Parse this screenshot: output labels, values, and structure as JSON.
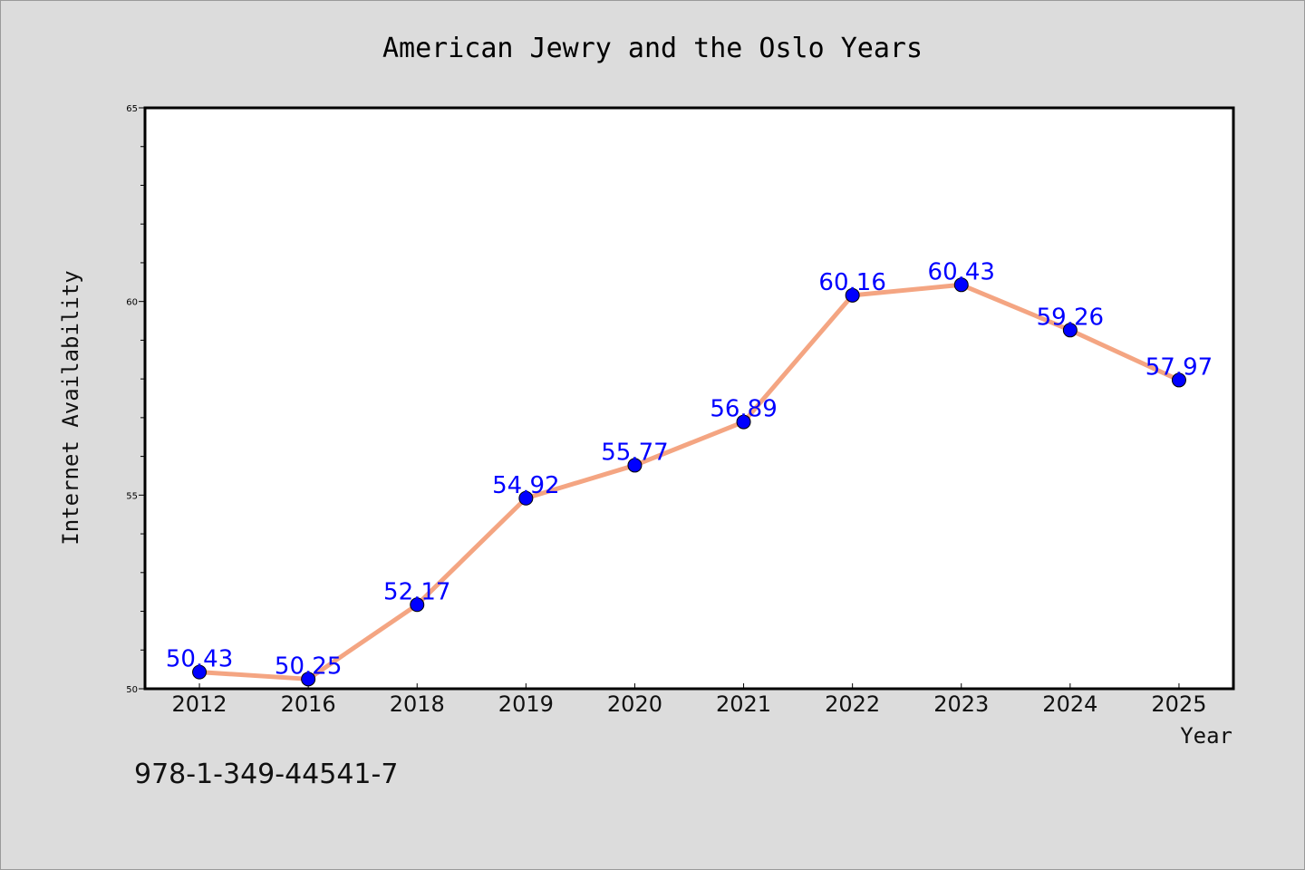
{
  "chart_data": {
    "type": "line",
    "title": "American Jewry and the Oslo Years",
    "xlabel": "Year",
    "ylabel": "Internet Availability",
    "categories": [
      "2012",
      "2016",
      "2018",
      "2019",
      "2020",
      "2021",
      "2022",
      "2023",
      "2024",
      "2025"
    ],
    "series": [
      {
        "values": [
          50.43,
          50.25,
          52.17,
          54.92,
          55.77,
          56.89,
          60.16,
          60.43,
          59.26,
          57.97
        ],
        "line_color": "#f4a582",
        "marker_color": "#0000ff",
        "label_color": "#0000ff"
      }
    ],
    "ylim": [
      50,
      65
    ],
    "yticks": [
      "50",
      "55",
      "60",
      "65"
    ],
    "grid": false,
    "legend": "none"
  },
  "annotation": "978-1-349-44541-7"
}
